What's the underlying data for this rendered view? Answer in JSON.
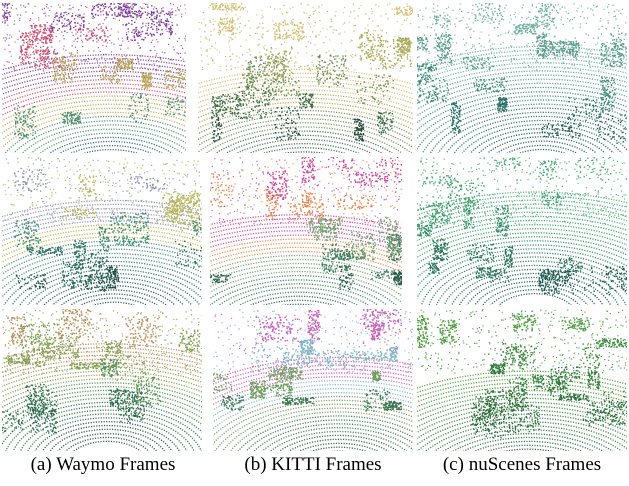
{
  "captions": [
    "(a) Waymo Frames",
    "(b) KITTI Frames",
    "(c) nuScenes Frames"
  ],
  "panels": [
    {
      "column": 0,
      "row": 0,
      "palette": [
        "#7a3f98",
        "#c7506e",
        "#b9a85b",
        "#4f8e6a",
        "#275f6b"
      ]
    },
    {
      "column": 0,
      "row": 1,
      "palette": [
        "#8a8fb8",
        "#b7b65a",
        "#3f8a6c",
        "#2a6a5d",
        "#1f4f45"
      ]
    },
    {
      "column": 0,
      "row": 2,
      "palette": [
        "#b58e5a",
        "#7f9e52",
        "#4f8a4e",
        "#2d6a4a",
        "#244d3c"
      ]
    },
    {
      "column": 1,
      "row": 0,
      "palette": [
        "#d7c07a",
        "#a9a95a",
        "#6c8f55",
        "#3d6a4a",
        "#2d4b3f"
      ]
    },
    {
      "column": 1,
      "row": 1,
      "palette": [
        "#c7479a",
        "#e38a4e",
        "#6fa06a",
        "#3a7a5d",
        "#2c5a4b"
      ]
    },
    {
      "column": 1,
      "row": 2,
      "palette": [
        "#c85fb8",
        "#7fb7c3",
        "#6f9a5c",
        "#3e7450",
        "#2b5a44"
      ]
    },
    {
      "column": 2,
      "row": 0,
      "palette": [
        "#6fb0a0",
        "#5a9a8a",
        "#3f8877",
        "#2b6e63",
        "#1f5753"
      ]
    },
    {
      "column": 2,
      "row": 1,
      "palette": [
        "#4faa75",
        "#3f9a6d",
        "#358a66",
        "#2b735b",
        "#1f5a4c"
      ]
    },
    {
      "column": 2,
      "row": 2,
      "palette": [
        "#4f9a3d",
        "#3f8a3f",
        "#357a3f",
        "#2b6a3b",
        "#1f5232"
      ]
    }
  ]
}
